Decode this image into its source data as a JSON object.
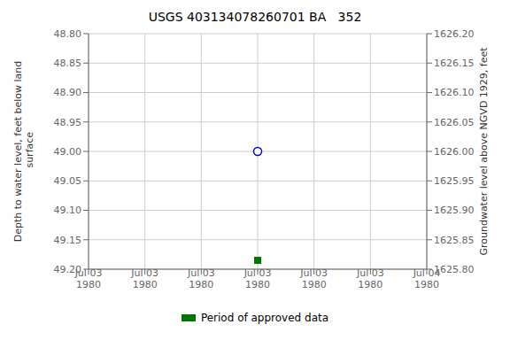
{
  "chart_data": {
    "type": "scatter",
    "title": "USGS 403134078260701 BA   352",
    "ylabel": "Depth to water level, feet below land\n surface",
    "y2label": "Groundwater level above NGVD 1929, feet",
    "categories": [
      "Jul 03\n1980",
      "Jul 03\n1980",
      "Jul 03\n1980",
      "Jul 03\n1980",
      "Jul 03\n1980",
      "Jul 03\n1980",
      "Jul 04\n1980"
    ],
    "series": [
      {
        "color": "#0000cc",
        "marker": "circle",
        "values": [
          null,
          null,
          null,
          49.0,
          null,
          null,
          null
        ]
      },
      {
        "name": "Period of approved data",
        "color": "#007700",
        "marker": "square",
        "values": [
          null,
          null,
          null,
          49.185,
          null,
          null,
          null
        ]
      }
    ],
    "ylim": [
      49.2,
      48.8
    ],
    "yticks": [
      {
        "value": 48.8,
        "label": "48.80"
      },
      48.85,
      {
        "value": 48.9,
        "label": "48.90"
      },
      48.95,
      {
        "value": 49.0,
        "label": "49.00"
      },
      49.05,
      {
        "value": 49.1,
        "label": "49.10"
      },
      49.15,
      {
        "value": 49.2,
        "label": "49.20"
      }
    ],
    "y2lim": [
      1625.8,
      1626.2
    ],
    "y2ticks": [
      {
        "value": 1626.2,
        "label": "1626.20"
      },
      1626.15,
      {
        "value": 1626.1,
        "label": "1626.10"
      },
      1626.05,
      {
        "value": 1626.0,
        "label": "1626.00"
      },
      1625.95,
      {
        "value": 1625.9,
        "label": "1625.90"
      },
      1625.85,
      {
        "value": 1625.8,
        "label": "1625.80"
      }
    ],
    "grid": true,
    "legend": "bottom"
  }
}
